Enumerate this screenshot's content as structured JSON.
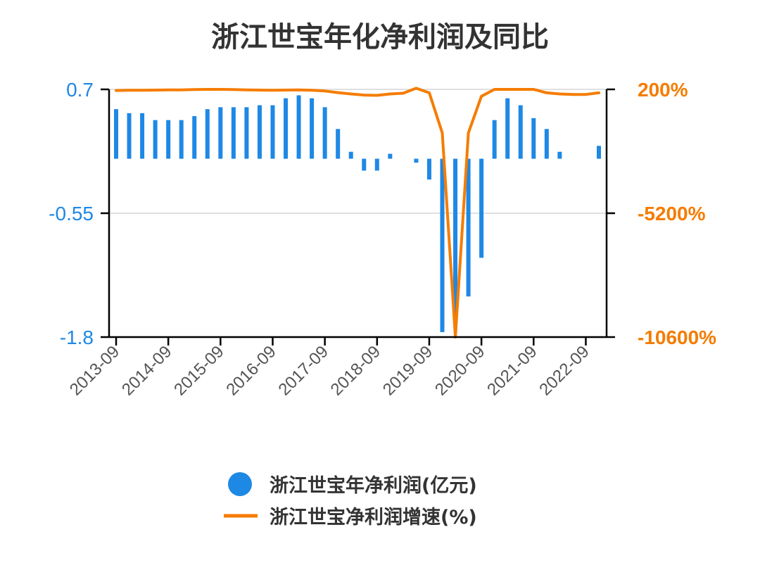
{
  "chart_data": {
    "type": "bar+line",
    "title": "浙江世宝年化净利润及同比",
    "x": [
      "2013-09",
      "2013-12",
      "2014-03",
      "2014-06",
      "2014-09",
      "2014-12",
      "2015-03",
      "2015-06",
      "2015-09",
      "2015-12",
      "2016-03",
      "2016-06",
      "2016-09",
      "2016-12",
      "2017-03",
      "2017-06",
      "2017-09",
      "2017-12",
      "2018-03",
      "2018-06",
      "2018-09",
      "2018-12",
      "2019-03",
      "2019-06",
      "2019-09",
      "2019-12",
      "2020-03",
      "2020-06",
      "2020-09",
      "2020-12",
      "2021-03",
      "2021-06",
      "2021-09",
      "2021-12",
      "2022-03",
      "2022-06",
      "2022-09",
      "2022-12"
    ],
    "xticks": [
      "2013-09",
      "2014-09",
      "2015-09",
      "2016-09",
      "2017-09",
      "2018-09",
      "2019-09",
      "2020-09",
      "2021-09",
      "2022-09"
    ],
    "yticks_left": [
      "0.7",
      "-0.55",
      "-1.8"
    ],
    "yticks_right": [
      "200%",
      "-5200%",
      "-10600%"
    ],
    "ylim_left": [
      -1.8,
      0.7
    ],
    "ylim_right": [
      -10600,
      200
    ],
    "grid": true,
    "legend_position": "bottom",
    "series": [
      {
        "name": "浙江世宝年净利润(亿元)",
        "type": "bar",
        "axis": "left",
        "color": "#1e88e5",
        "values": [
          0.5,
          0.46,
          0.46,
          0.39,
          0.39,
          0.39,
          0.43,
          0.5,
          0.52,
          0.52,
          0.52,
          0.54,
          0.54,
          0.61,
          0.64,
          0.61,
          0.52,
          0.3,
          0.07,
          -0.12,
          -0.12,
          0.05,
          null,
          -0.04,
          -0.21,
          -1.75,
          -1.65,
          -1.39,
          -1.0,
          0.39,
          0.61,
          0.54,
          0.41,
          0.3,
          0.07,
          null,
          null,
          0.13
        ]
      },
      {
        "name": "浙江世宝净利润增速(%)",
        "type": "line",
        "axis": "right",
        "color": "#f57c00",
        "values": [
          150,
          160,
          160,
          170,
          175,
          180,
          190,
          200,
          200,
          190,
          180,
          170,
          160,
          170,
          180,
          160,
          130,
          60,
          0,
          -50,
          -60,
          0,
          30,
          250,
          50,
          -1700,
          -10600,
          -1700,
          -100,
          200,
          200,
          200,
          200,
          50,
          0,
          -20,
          -20,
          50
        ]
      }
    ]
  }
}
